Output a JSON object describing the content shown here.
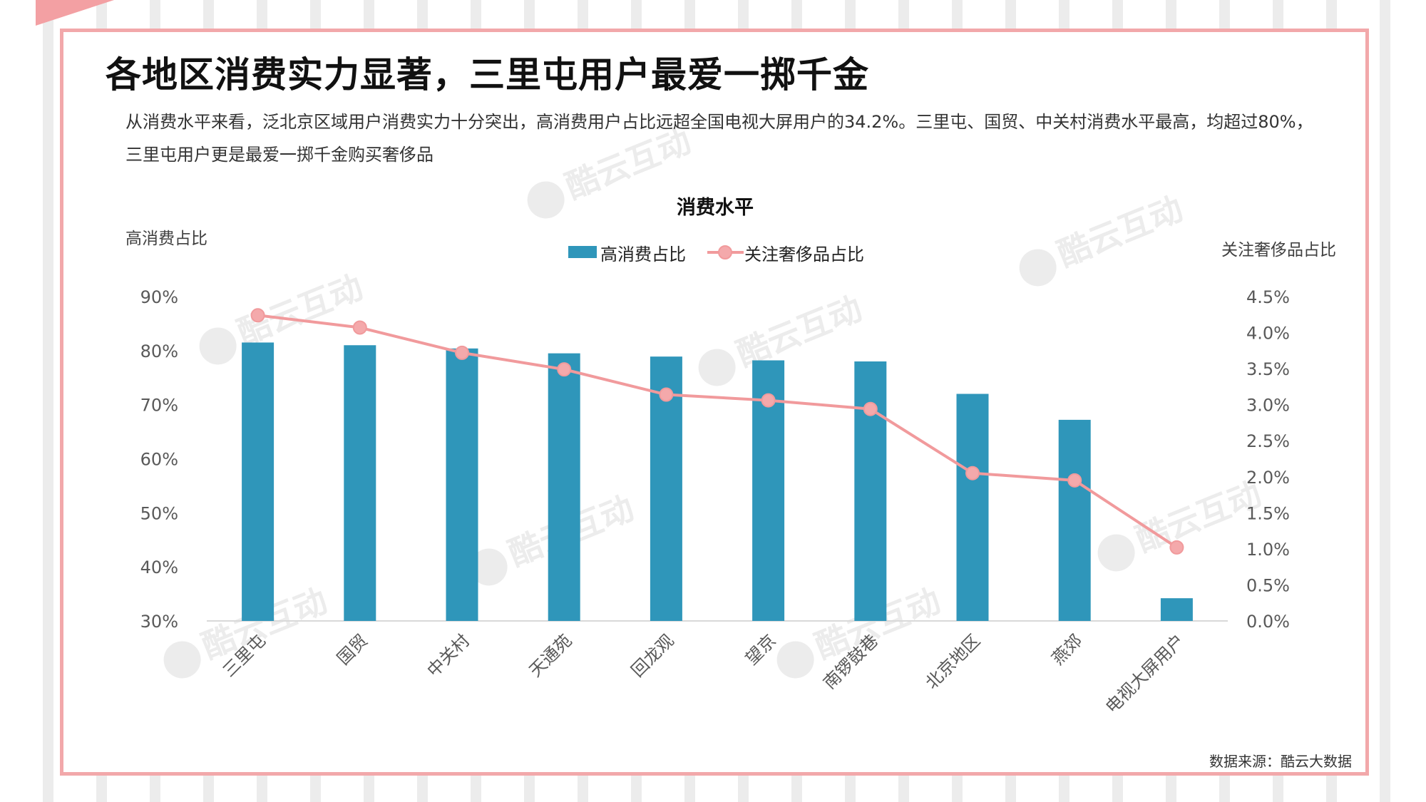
{
  "page": {
    "title": "各地区消费实力显著，三里屯用户最爱一掷千金",
    "description": "从消费水平来看，泛北京区域用户消费实力十分突出，高消费用户占比远超全国电视大屏用户的34.2%。三里屯、国贸、中关村消费水平最高，均超过80%，三里屯用户更是最爱一掷千金购买奢侈品",
    "source": "数据来源：酷云大数据",
    "watermark": "酷云互动"
  },
  "colors": {
    "bar": "#2f96ba",
    "line": "#f19a9c",
    "marker": "#f4a9ab",
    "frame": "#f2a8aa"
  },
  "chart_data": {
    "type": "bar",
    "title": "消费水平",
    "categories": [
      "三里屯",
      "国贸",
      "中关村",
      "天通苑",
      "回龙观",
      "望京",
      "南锣鼓巷",
      "北京地区",
      "燕郊",
      "电视大屏用户"
    ],
    "series": [
      {
        "name": "高消费占比",
        "type": "bar",
        "axis": "left",
        "values": [
          81.5,
          81.0,
          80.4,
          79.5,
          78.9,
          78.2,
          78.0,
          72.0,
          67.2,
          34.2
        ]
      },
      {
        "name": "关注奢侈品占比",
        "type": "line",
        "axis": "right",
        "values": [
          4.24,
          4.07,
          3.72,
          3.49,
          3.14,
          3.06,
          2.94,
          2.05,
          1.95,
          1.02
        ]
      }
    ],
    "y_left": {
      "label": "高消费占比",
      "ylim": [
        30,
        90
      ],
      "ticks": [
        "30%",
        "40%",
        "50%",
        "60%",
        "70%",
        "80%",
        "90%"
      ]
    },
    "y_right": {
      "label": "关注奢侈品占比",
      "ylim": [
        0,
        4.5
      ],
      "ticks": [
        "0.0%",
        "0.5%",
        "1.0%",
        "1.5%",
        "2.0%",
        "2.5%",
        "3.0%",
        "3.5%",
        "4.0%",
        "4.5%"
      ]
    },
    "legend": {
      "position": "top-center",
      "entries": [
        "高消费占比",
        "关注奢侈品占比"
      ]
    },
    "grid": false
  }
}
